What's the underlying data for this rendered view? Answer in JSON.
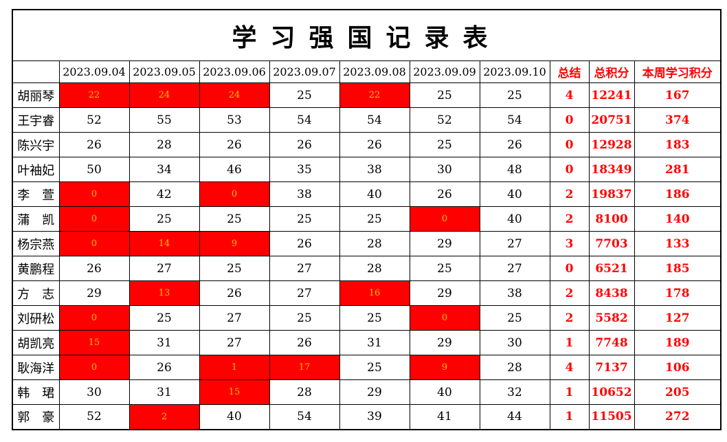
{
  "title": "学习强国记录表",
  "colors": {
    "highlight_bg": "#ff0000",
    "highlight_text": "#ffc000",
    "summary_text": "#ff0000",
    "grid_line": "#000000",
    "background": "#ffffff"
  },
  "table": {
    "columns": [
      {
        "label": "",
        "type": "corner"
      },
      {
        "label": "2023.09.04",
        "type": "date"
      },
      {
        "label": "2023.09.05",
        "type": "date"
      },
      {
        "label": "2023.09.06",
        "type": "date"
      },
      {
        "label": "2023.09.07",
        "type": "date"
      },
      {
        "label": "2023.09.08",
        "type": "date"
      },
      {
        "label": "2023.09.09",
        "type": "date"
      },
      {
        "label": "2023.09.10",
        "type": "date"
      },
      {
        "label": "总结",
        "type": "summary"
      },
      {
        "label": "总积分",
        "type": "summary"
      },
      {
        "label": "本周学习积分",
        "type": "summary"
      }
    ],
    "rows": [
      {
        "name": "胡丽琴",
        "days": [
          {
            "value": "22",
            "highlight": true
          },
          {
            "value": "24",
            "highlight": true
          },
          {
            "value": "24",
            "highlight": true
          },
          {
            "value": "25",
            "highlight": false
          },
          {
            "value": "22",
            "highlight": true
          },
          {
            "value": "25",
            "highlight": false
          },
          {
            "value": "25",
            "highlight": false
          }
        ],
        "summary": "4",
        "total": "12241",
        "week": "167"
      },
      {
        "name": "王宇睿",
        "days": [
          {
            "value": "52",
            "highlight": false
          },
          {
            "value": "55",
            "highlight": false
          },
          {
            "value": "53",
            "highlight": false
          },
          {
            "value": "54",
            "highlight": false
          },
          {
            "value": "54",
            "highlight": false
          },
          {
            "value": "52",
            "highlight": false
          },
          {
            "value": "54",
            "highlight": false
          }
        ],
        "summary": "0",
        "total": "20751",
        "week": "374"
      },
      {
        "name": "陈兴宇",
        "days": [
          {
            "value": "26",
            "highlight": false
          },
          {
            "value": "28",
            "highlight": false
          },
          {
            "value": "26",
            "highlight": false
          },
          {
            "value": "26",
            "highlight": false
          },
          {
            "value": "26",
            "highlight": false
          },
          {
            "value": "25",
            "highlight": false
          },
          {
            "value": "26",
            "highlight": false
          }
        ],
        "summary": "0",
        "total": "12928",
        "week": "183"
      },
      {
        "name": "叶袖妃",
        "days": [
          {
            "value": "50",
            "highlight": false
          },
          {
            "value": "34",
            "highlight": false
          },
          {
            "value": "46",
            "highlight": false
          },
          {
            "value": "35",
            "highlight": false
          },
          {
            "value": "38",
            "highlight": false
          },
          {
            "value": "30",
            "highlight": false
          },
          {
            "value": "48",
            "highlight": false
          }
        ],
        "summary": "0",
        "total": "18349",
        "week": "281"
      },
      {
        "name": "李　萱",
        "days": [
          {
            "value": "0",
            "highlight": true
          },
          {
            "value": "42",
            "highlight": false
          },
          {
            "value": "0",
            "highlight": true
          },
          {
            "value": "38",
            "highlight": false
          },
          {
            "value": "40",
            "highlight": false
          },
          {
            "value": "26",
            "highlight": false
          },
          {
            "value": "40",
            "highlight": false
          }
        ],
        "summary": "2",
        "total": "19837",
        "week": "186"
      },
      {
        "name": "蒲　凯",
        "days": [
          {
            "value": "0",
            "highlight": true
          },
          {
            "value": "25",
            "highlight": false
          },
          {
            "value": "25",
            "highlight": false
          },
          {
            "value": "25",
            "highlight": false
          },
          {
            "value": "25",
            "highlight": false
          },
          {
            "value": "0",
            "highlight": true
          },
          {
            "value": "40",
            "highlight": false
          }
        ],
        "summary": "2",
        "total": "8100",
        "week": "140"
      },
      {
        "name": "杨宗燕",
        "days": [
          {
            "value": "0",
            "highlight": true
          },
          {
            "value": "14",
            "highlight": true
          },
          {
            "value": "9",
            "highlight": true
          },
          {
            "value": "26",
            "highlight": false
          },
          {
            "value": "28",
            "highlight": false
          },
          {
            "value": "29",
            "highlight": false
          },
          {
            "value": "27",
            "highlight": false
          }
        ],
        "summary": "3",
        "total": "7703",
        "week": "133"
      },
      {
        "name": "黄鹏程",
        "days": [
          {
            "value": "26",
            "highlight": false
          },
          {
            "value": "27",
            "highlight": false
          },
          {
            "value": "25",
            "highlight": false
          },
          {
            "value": "27",
            "highlight": false
          },
          {
            "value": "28",
            "highlight": false
          },
          {
            "value": "25",
            "highlight": false
          },
          {
            "value": "27",
            "highlight": false
          }
        ],
        "summary": "0",
        "total": "6521",
        "week": "185"
      },
      {
        "name": "方　志",
        "days": [
          {
            "value": "29",
            "highlight": false
          },
          {
            "value": "13",
            "highlight": true
          },
          {
            "value": "26",
            "highlight": false
          },
          {
            "value": "27",
            "highlight": false
          },
          {
            "value": "16",
            "highlight": true
          },
          {
            "value": "29",
            "highlight": false
          },
          {
            "value": "38",
            "highlight": false
          }
        ],
        "summary": "2",
        "total": "8438",
        "week": "178"
      },
      {
        "name": "刘研松",
        "days": [
          {
            "value": "0",
            "highlight": true
          },
          {
            "value": "25",
            "highlight": false
          },
          {
            "value": "27",
            "highlight": false
          },
          {
            "value": "25",
            "highlight": false
          },
          {
            "value": "25",
            "highlight": false
          },
          {
            "value": "0",
            "highlight": true
          },
          {
            "value": "25",
            "highlight": false
          }
        ],
        "summary": "2",
        "total": "5582",
        "week": "127"
      },
      {
        "name": "胡凯亮",
        "days": [
          {
            "value": "15",
            "highlight": true
          },
          {
            "value": "31",
            "highlight": false
          },
          {
            "value": "27",
            "highlight": false
          },
          {
            "value": "26",
            "highlight": false
          },
          {
            "value": "31",
            "highlight": false
          },
          {
            "value": "29",
            "highlight": false
          },
          {
            "value": "30",
            "highlight": false
          }
        ],
        "summary": "1",
        "total": "7748",
        "week": "189"
      },
      {
        "name": "耿海洋",
        "days": [
          {
            "value": "0",
            "highlight": true
          },
          {
            "value": "26",
            "highlight": false
          },
          {
            "value": "1",
            "highlight": true
          },
          {
            "value": "17",
            "highlight": true
          },
          {
            "value": "25",
            "highlight": false
          },
          {
            "value": "9",
            "highlight": true
          },
          {
            "value": "28",
            "highlight": false
          }
        ],
        "summary": "4",
        "total": "7137",
        "week": "106"
      },
      {
        "name": "韩　珺",
        "days": [
          {
            "value": "30",
            "highlight": false
          },
          {
            "value": "31",
            "highlight": false
          },
          {
            "value": "15",
            "highlight": true
          },
          {
            "value": "28",
            "highlight": false
          },
          {
            "value": "29",
            "highlight": false
          },
          {
            "value": "40",
            "highlight": false
          },
          {
            "value": "32",
            "highlight": false
          }
        ],
        "summary": "1",
        "total": "10652",
        "week": "205"
      },
      {
        "name": "郭　豪",
        "days": [
          {
            "value": "52",
            "highlight": false
          },
          {
            "value": "2",
            "highlight": true
          },
          {
            "value": "40",
            "highlight": false
          },
          {
            "value": "54",
            "highlight": false
          },
          {
            "value": "39",
            "highlight": false
          },
          {
            "value": "41",
            "highlight": false
          },
          {
            "value": "44",
            "highlight": false
          }
        ],
        "summary": "1",
        "total": "11505",
        "week": "272"
      }
    ]
  }
}
